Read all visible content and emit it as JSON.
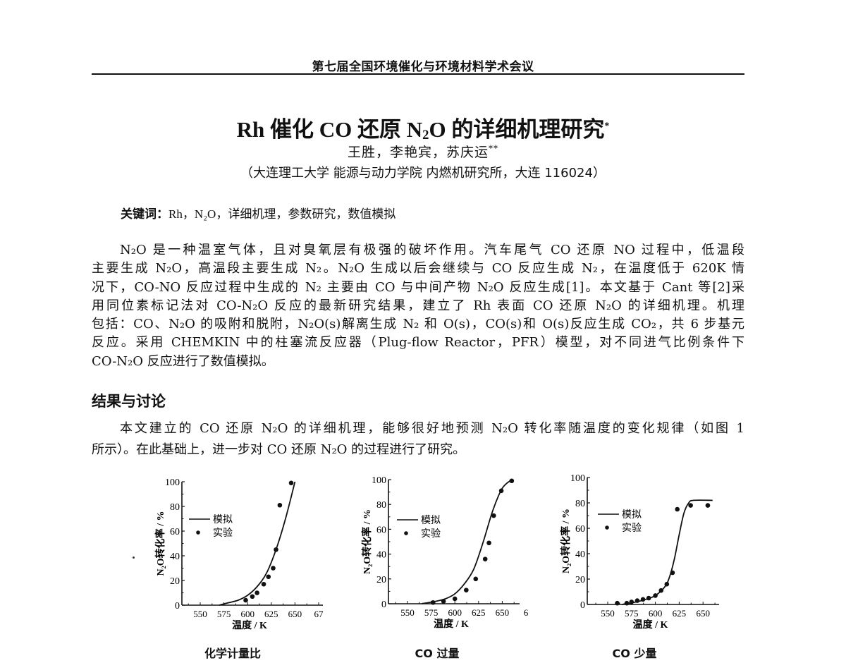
{
  "header": {
    "conference": "第七届全国环境催化与环境材料学术会议"
  },
  "paper": {
    "title_pre": "Rh 催化 CO 还原 N",
    "title_sub": "2",
    "title_post": "O 的详细机理研究",
    "title_mark": "*",
    "authors": "王胜，李艳宾，苏庆运",
    "authors_mark": "**",
    "affiliation": "（大连理工大学  能源与动力学院  内燃机研究所，大连  116024）",
    "keywords_label": "关键词：",
    "keywords": "Rh，N₂O，详细机理，参数研究，数值模拟"
  },
  "body": {
    "intro_lines": [
      "N₂O 是一种温室气体，且对臭氧层有极强的破坏作用。汽车尾气 CO 还原 NO 过程中，低温段",
      "主要生成 N₂O，高温段主要生成 N₂。N₂O 生成以后会继续与 CO 反应生成 N₂，在温度低于 620K 情",
      "况下，CO-NO 反应过程中生成的 N₂ 主要由 CO 与中间产物 N₂O 反应生成[1]。本文基于 Cant 等[2]采",
      "用同位素标记法对 CO-N₂O 反应的最新研究结果，建立了 Rh 表面 CO 还原 N₂O 的详细机理。机理",
      "包括：CO、N₂O 的吸附和脱附，N₂O(s)解离生成 N₂ 和 O(s)，CO(s)和 O(s)反应生成 CO₂，共 6 步基元",
      "反应。采用 CHEMKIN 中的柱塞流反应器（Plug-flow Reactor，PFR）模型，对不同进气比例条件下",
      "CO-N₂O 反应进行了数值模拟。"
    ],
    "section_heading": "结果与讨论",
    "results_lines": [
      "本文建立的 CO 还原 N₂O 的详细机理，能够很好地预测 N₂O 转化率随温度的变化规律（如图 1",
      "所示）。在此基础上，进一步对 CO 还原 N₂O 的过程进行了研究。"
    ]
  },
  "chart_data": [
    {
      "type": "line",
      "title": "化学计量比",
      "xlabel": "温度 / K",
      "ylabel": "N₂O转化率 / %",
      "xticks": [
        "550",
        "575",
        "600",
        "625",
        "650",
        "67"
      ],
      "yticks": [
        "0",
        "20",
        "40",
        "60",
        "80",
        "100"
      ],
      "ylim": [
        0,
        100
      ],
      "legend": [
        "模拟",
        "实验"
      ],
      "series": [
        {
          "name": "模拟",
          "kind": "line",
          "x": [
            570,
            580,
            590,
            600,
            610,
            620,
            630,
            640,
            650
          ],
          "y": [
            0,
            2,
            4,
            8,
            15,
            26,
            45,
            70,
            100
          ]
        },
        {
          "name": "实验",
          "kind": "scatter",
          "x": [
            598,
            605,
            610,
            617,
            622,
            627,
            630,
            634,
            646
          ],
          "y": [
            4,
            7,
            10,
            17,
            23,
            30,
            45,
            81,
            99
          ]
        }
      ]
    },
    {
      "type": "line",
      "title": "CO 过量",
      "xlabel": "温度 / K",
      "ylabel": "N₂O转化率 / %",
      "xticks": [
        "550",
        "575",
        "600",
        "625",
        "650",
        "6"
      ],
      "yticks": [
        "0",
        "20",
        "40",
        "60",
        "80",
        "100"
      ],
      "ylim": [
        0,
        100
      ],
      "legend": [
        "模拟",
        "实验"
      ],
      "series": [
        {
          "name": "模拟",
          "kind": "line",
          "x": [
            565,
            580,
            590,
            600,
            610,
            620,
            630,
            640,
            650,
            660
          ],
          "y": [
            0,
            2,
            4,
            8,
            16,
            28,
            50,
            75,
            93,
            100
          ]
        },
        {
          "name": "实验",
          "kind": "scatter",
          "x": [
            577,
            588,
            600,
            612,
            622,
            632,
            636,
            641,
            649,
            660
          ],
          "y": [
            1,
            2,
            4,
            11,
            20,
            36,
            49,
            71,
            91,
            99
          ]
        }
      ]
    },
    {
      "type": "line",
      "title": "CO 少量",
      "xlabel": "温度 / K",
      "ylabel": "N₂O转化率 / %",
      "xticks": [
        "550",
        "575",
        "600",
        "625",
        "650"
      ],
      "yticks": [
        "0",
        "20",
        "40",
        "60",
        "80",
        "100"
      ],
      "ylim": [
        0,
        100
      ],
      "legend": [
        "模拟",
        "实验"
      ],
      "series": [
        {
          "name": "模拟",
          "kind": "line",
          "x": [
            565,
            580,
            590,
            600,
            610,
            615,
            620,
            625,
            630,
            635,
            640,
            660
          ],
          "y": [
            0,
            2,
            4,
            7,
            14,
            22,
            36,
            55,
            72,
            80,
            82,
            82
          ]
        },
        {
          "name": "实验",
          "kind": "scatter",
          "x": [
            560,
            570,
            575,
            581,
            587,
            593,
            600,
            606,
            612,
            618,
            623,
            637,
            655
          ],
          "y": [
            1,
            1,
            2,
            3,
            4,
            5,
            7,
            11,
            16,
            25,
            75,
            78,
            78
          ]
        }
      ]
    }
  ]
}
